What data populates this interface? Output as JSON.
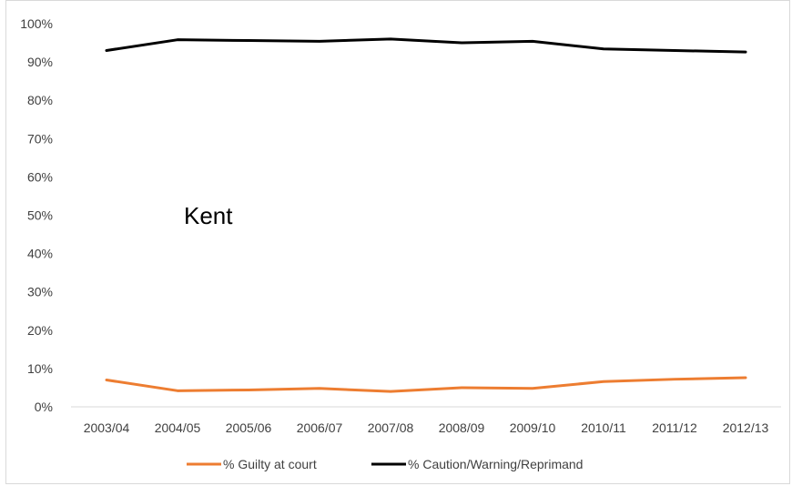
{
  "chart_data": {
    "type": "line",
    "title": "",
    "annotation": "Kent",
    "xlabel": "",
    "ylabel": "",
    "categories": [
      "2003/04",
      "2004/05",
      "2005/06",
      "2006/07",
      "2007/08",
      "2008/09",
      "2009/10",
      "2010/11",
      "2011/12",
      "2012/13"
    ],
    "y_ticks": [
      "0%",
      "10%",
      "20%",
      "30%",
      "40%",
      "50%",
      "60%",
      "70%",
      "80%",
      "90%",
      "100%"
    ],
    "ylim": [
      0,
      100
    ],
    "grid": false,
    "legend_position": "bottom",
    "series": [
      {
        "name": "% Guilty at court",
        "color": "#ED7D31",
        "values": [
          7.0,
          4.2,
          4.4,
          4.8,
          4.0,
          5.0,
          4.8,
          6.6,
          7.2,
          7.6
        ]
      },
      {
        "name": "% Caution/Warning/Reprimand",
        "color": "#000000",
        "values": [
          93.0,
          95.8,
          95.6,
          95.4,
          96.0,
          95.0,
          95.4,
          93.4,
          93.0,
          92.6
        ]
      }
    ]
  }
}
